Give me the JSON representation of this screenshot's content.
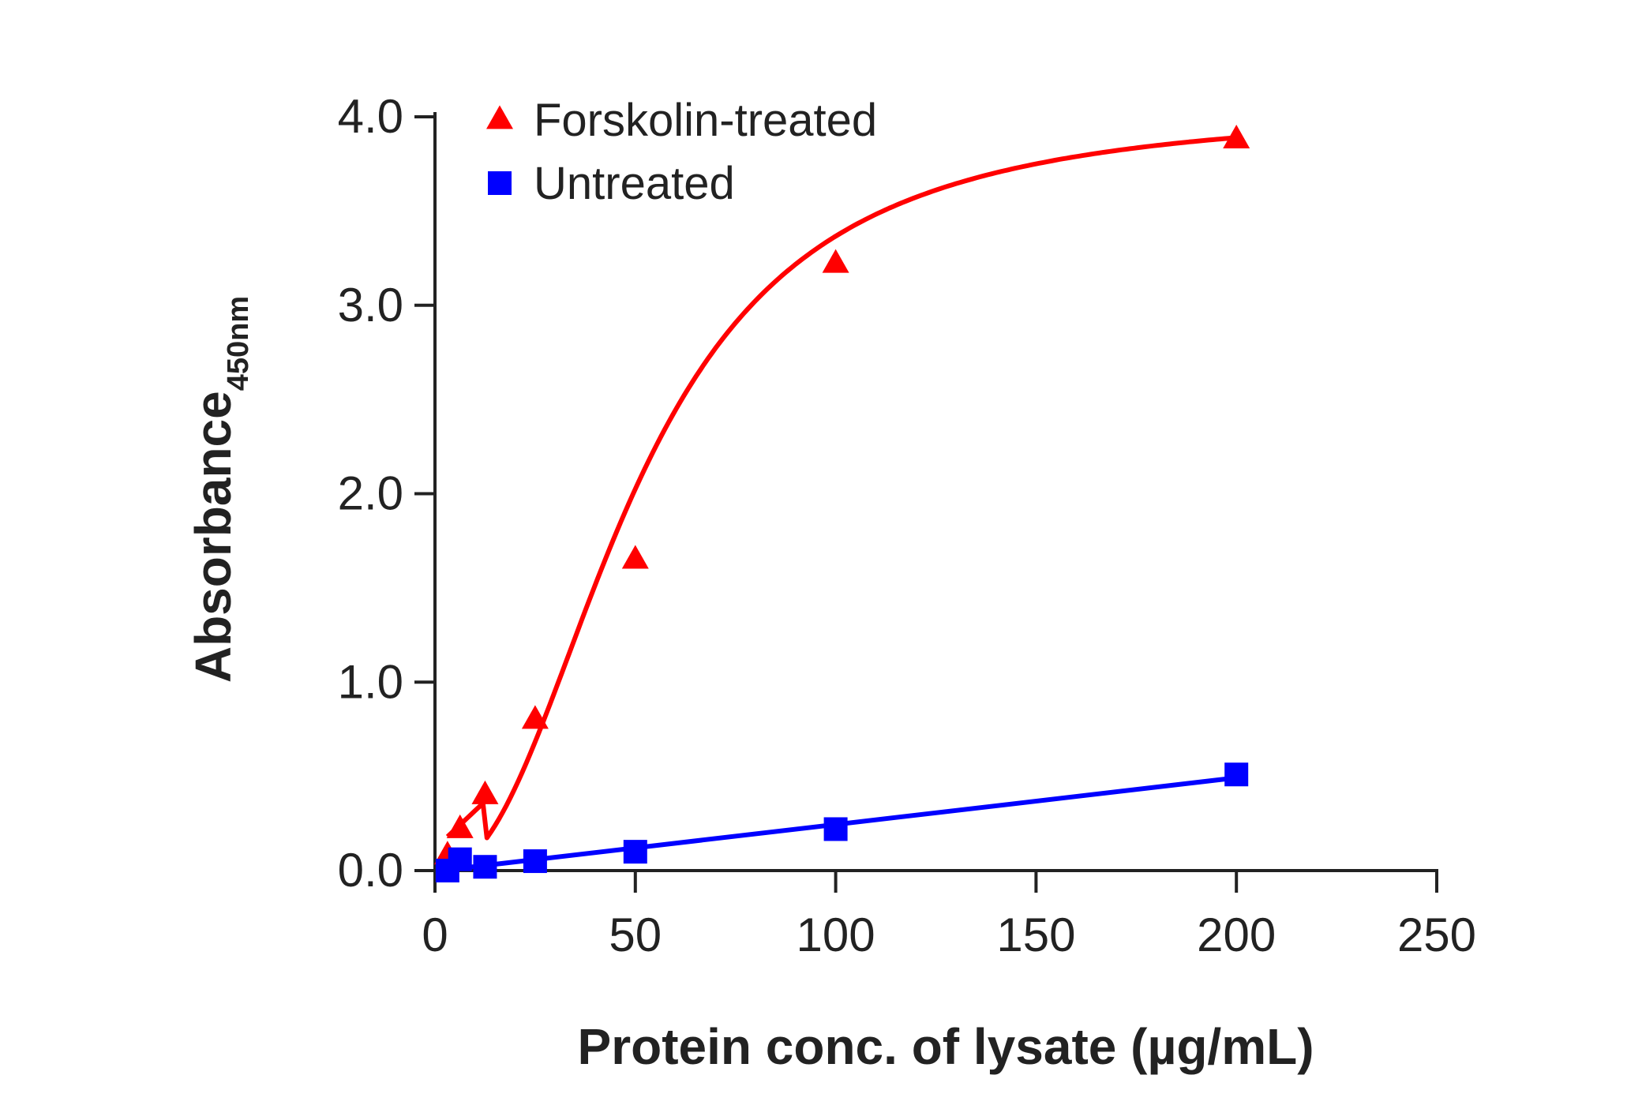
{
  "chart_data": {
    "type": "scatter",
    "title": "",
    "xlabel": "Protein conc. of lysate (µg/mL)",
    "ylabel": "Absorbance",
    "ylabel_subscript": "450nm",
    "xlim": [
      0,
      250
    ],
    "ylim": [
      0,
      4.0
    ],
    "x_ticks": [
      0,
      50,
      100,
      150,
      200,
      250
    ],
    "x_tick_labels": [
      "0",
      "50",
      "100",
      "150",
      "200",
      "250"
    ],
    "y_ticks": [
      0,
      1,
      2,
      3,
      4
    ],
    "y_tick_labels": [
      "0.0",
      "1.0",
      "2.0",
      "3.0",
      "4.0"
    ],
    "grid": false,
    "legend_position": "top-left",
    "series": [
      {
        "name": "Forskolin-treated",
        "color": "#ff0000",
        "marker": "triangle",
        "fit": "sigmoid",
        "x": [
          3.125,
          6.25,
          12.5,
          25,
          50,
          100,
          200
        ],
        "y": [
          0.08,
          0.22,
          0.4,
          0.8,
          1.65,
          3.22,
          3.88
        ]
      },
      {
        "name": "Untreated",
        "color": "#0000ff",
        "marker": "square",
        "fit": "linear",
        "x": [
          3.125,
          6.25,
          12.5,
          25,
          50,
          100,
          200
        ],
        "y": [
          0.0,
          0.06,
          0.02,
          0.05,
          0.1,
          0.22,
          0.51
        ]
      }
    ]
  }
}
